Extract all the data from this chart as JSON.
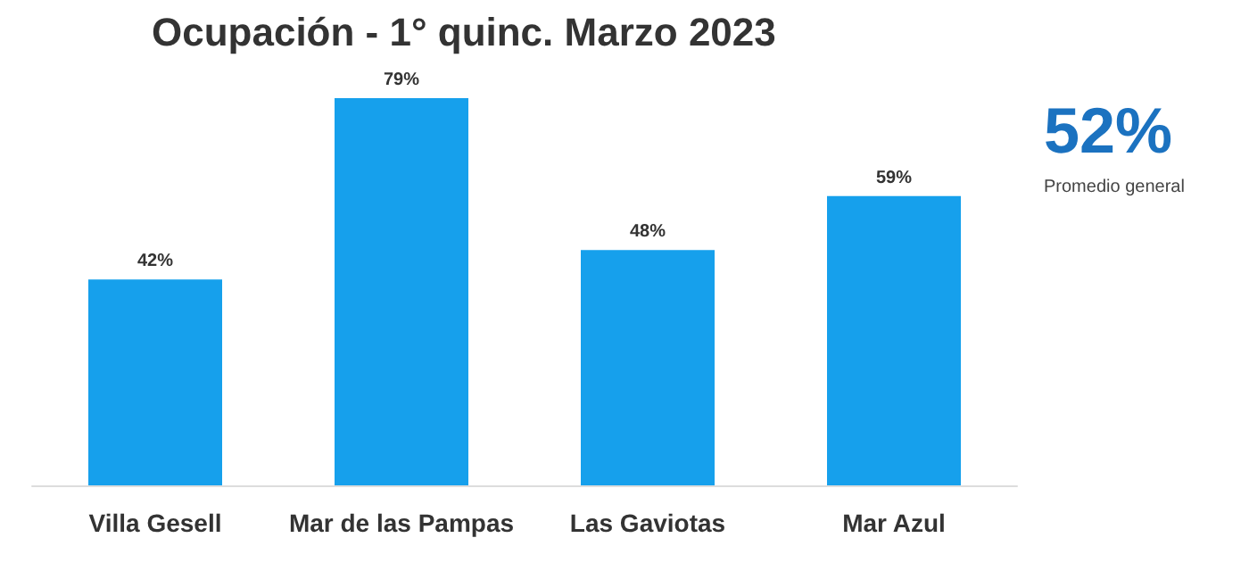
{
  "chart_data": {
    "type": "bar",
    "title": "Ocupación - 1° quinc. Marzo 2023",
    "categories": [
      "Villa Gesell",
      "Mar de las Pampas",
      "Las Gaviotas",
      "Mar Azul"
    ],
    "values": [
      42,
      79,
      48,
      59
    ],
    "value_labels": [
      "42%",
      "79%",
      "48%",
      "59%"
    ],
    "color": "#16a0ec",
    "annotations": [
      "52%",
      "Promedio general"
    ]
  }
}
